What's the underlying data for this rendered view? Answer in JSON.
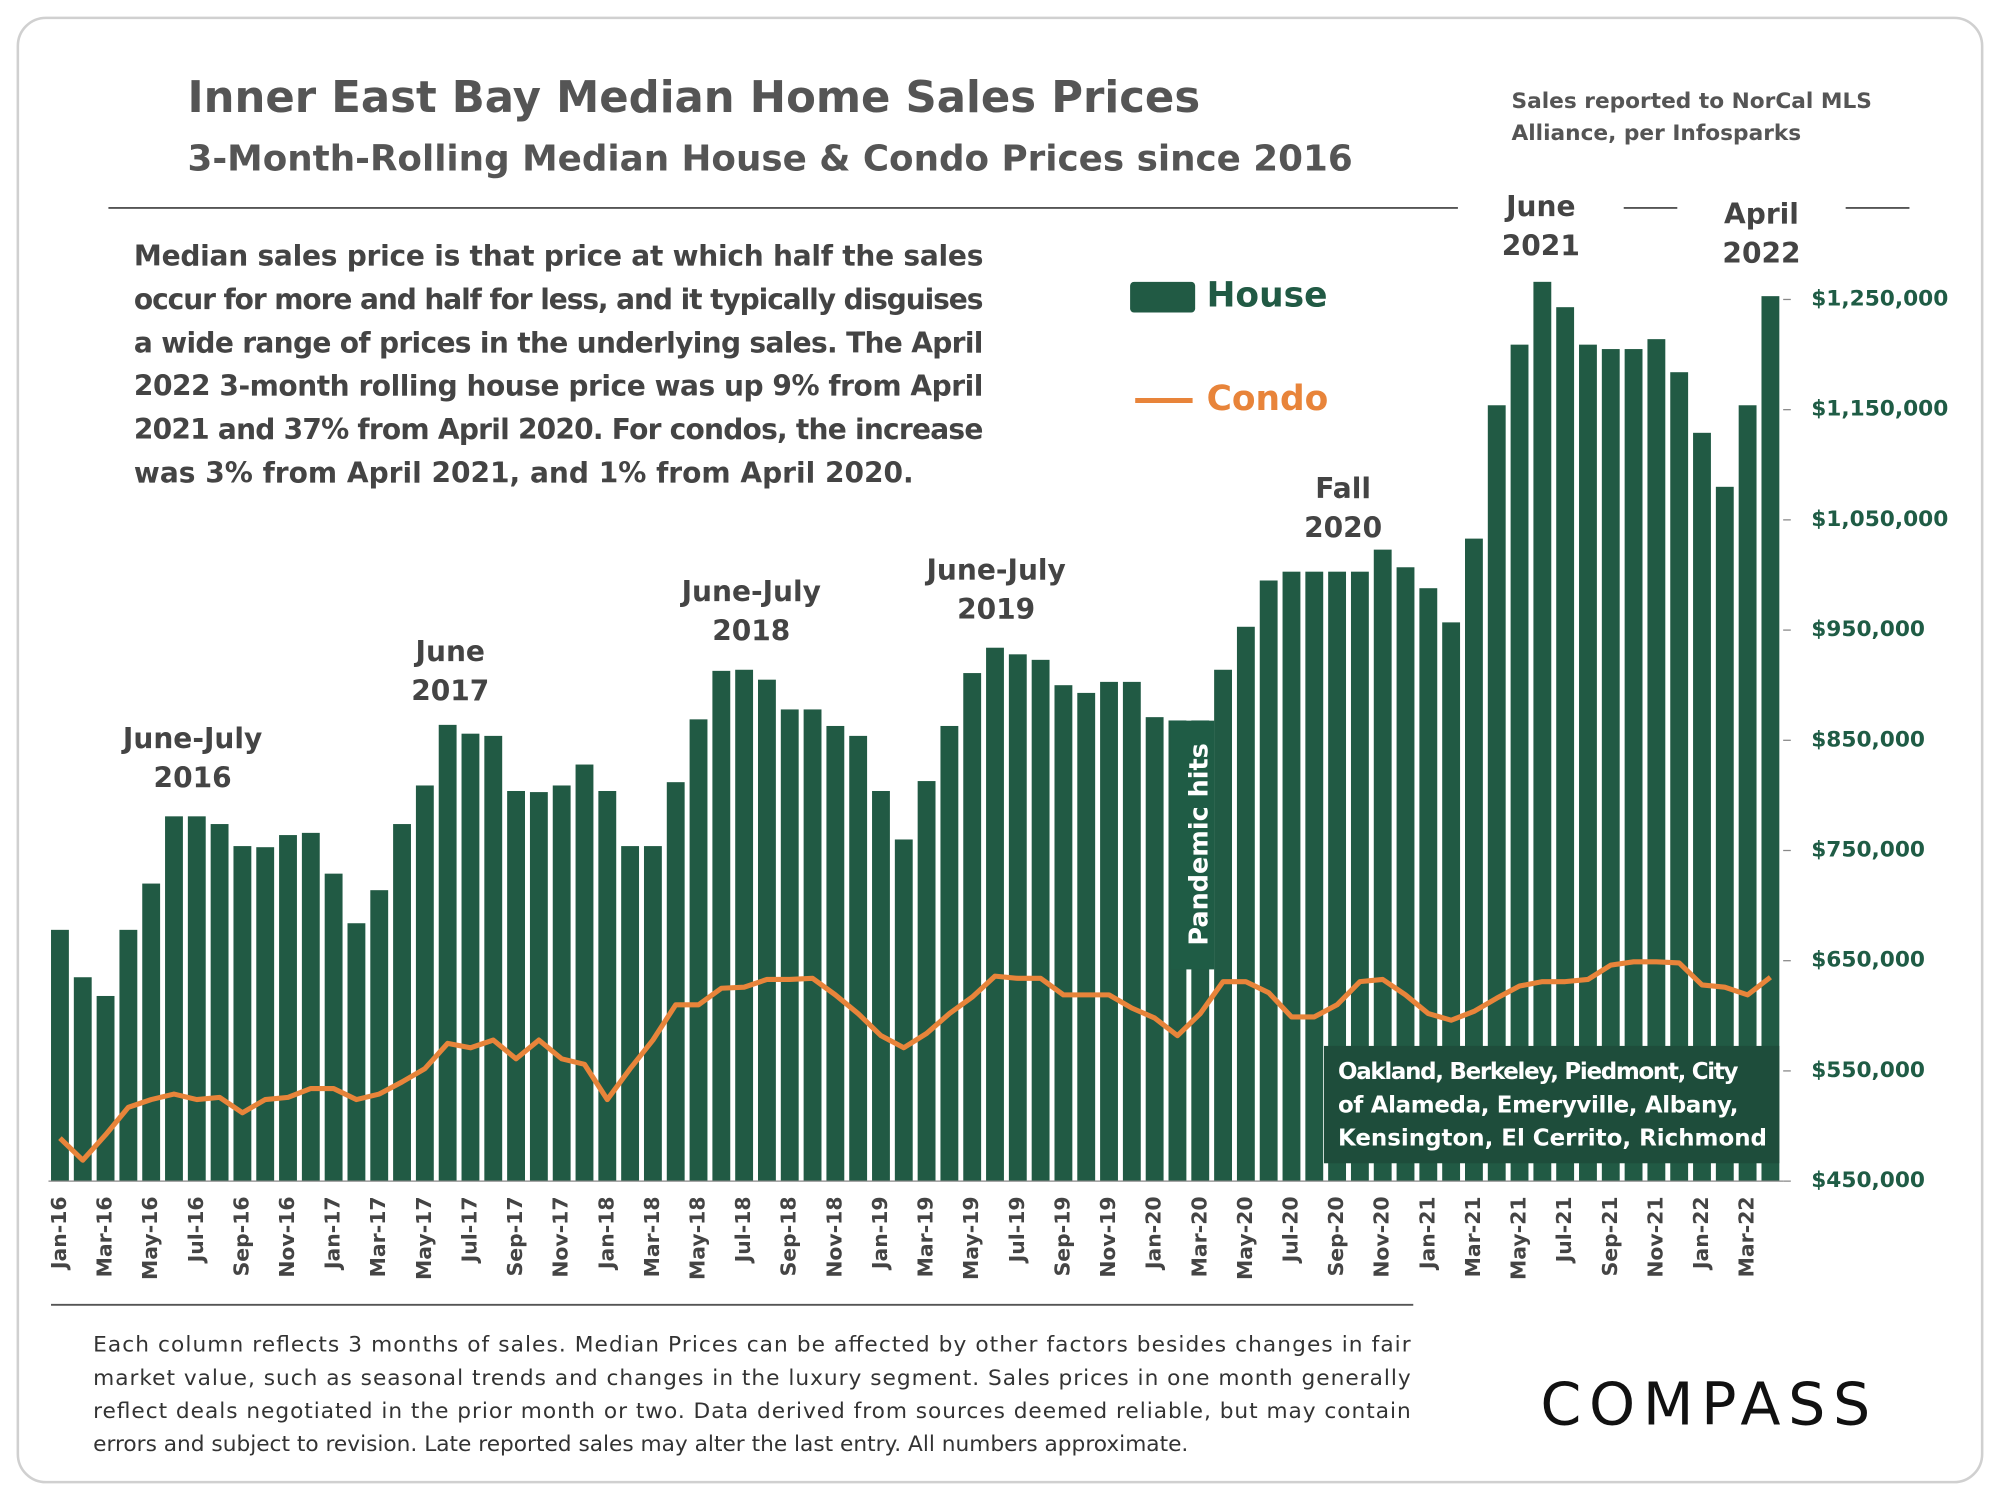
{
  "title": "Inner East Bay Median Home Sales Prices",
  "subtitle": "3-Month-Rolling Median House & Condo Prices since 2016",
  "source_note": [
    "Sales reported to NorCal MLS",
    "Alliance, per Infosparks"
  ],
  "description": [
    "Median sales price is that price at which half the sales",
    "occur for more and half for less, and it typically disguises",
    "a wide range of prices in the underlying sales. The April",
    "2022 3-month rolling house price was up 9% from April",
    "2021 and 37% from April 2020. For condos, the increase",
    "was 3% from April 2021, and 1% from April 2020."
  ],
  "chart_data": {
    "type": "bar",
    "categories": [
      "Jan-16",
      null,
      "Mar-16",
      null,
      "May-16",
      null,
      "Jul-16",
      null,
      "Sep-16",
      null,
      "Nov-16",
      null,
      "Jan-17",
      null,
      "Mar-17",
      null,
      "May-17",
      null,
      "Jul-17",
      null,
      "Sep-17",
      null,
      "Nov-17",
      null,
      "Jan-18",
      null,
      "Mar-18",
      null,
      "May-18",
      null,
      "Jul-18",
      null,
      "Sep-18",
      null,
      "Nov-18",
      null,
      "Jan-19",
      null,
      "Mar-19",
      null,
      "May-19",
      null,
      "Jul-19",
      null,
      "Sep-19",
      null,
      "Nov-19",
      null,
      "Jan-20",
      null,
      "Mar-20",
      null,
      "May-20",
      null,
      "Jul-20",
      null,
      "Sep-20",
      null,
      "Nov-20",
      null,
      "Jan-21",
      null,
      "Mar-21",
      null,
      "May-21",
      null,
      "Jul-21",
      null,
      "Sep-21",
      null,
      "Nov-21",
      null,
      "Jan-22",
      null,
      "Mar-22",
      null
    ],
    "series": [
      {
        "name": "House",
        "type": "bar",
        "color": "#215a44",
        "values": [
          678000,
          635000,
          618000,
          678000,
          720000,
          781000,
          781000,
          774000,
          754000,
          753000,
          764000,
          766000,
          729000,
          684000,
          714000,
          774000,
          809000,
          864000,
          856000,
          854000,
          804000,
          803000,
          809000,
          828000,
          804000,
          754000,
          754000,
          812000,
          869000,
          913000,
          914000,
          905000,
          878000,
          878000,
          863000,
          854000,
          804000,
          760000,
          813000,
          863000,
          911000,
          934000,
          928000,
          923000,
          900000,
          893000,
          903000,
          903000,
          871000,
          868000,
          868000,
          914000,
          953000,
          995000,
          1003000,
          1003000,
          1003000,
          1003000,
          1023000,
          1007000,
          988000,
          957000,
          1033000,
          1154000,
          1209000,
          1266000,
          1243000,
          1209000,
          1205000,
          1205000,
          1214000,
          1184000,
          1129000,
          1080000,
          1154000,
          1253000
        ]
      },
      {
        "name": "Condo",
        "type": "line",
        "color": "#e8843a",
        "values": [
          489000,
          469000,
          492000,
          517000,
          524000,
          529000,
          524000,
          526000,
          512000,
          524000,
          526000,
          534000,
          534000,
          524000,
          529000,
          540000,
          552000,
          575000,
          571000,
          578000,
          561000,
          578000,
          561000,
          556000,
          524000,
          552000,
          578000,
          610000,
          610000,
          625000,
          626000,
          633000,
          633000,
          634000,
          619000,
          602000,
          582000,
          571000,
          584000,
          602000,
          617000,
          636000,
          634000,
          634000,
          619000,
          619000,
          619000,
          607000,
          598000,
          582000,
          602000,
          631000,
          631000,
          621000,
          599000,
          599000,
          610000,
          631000,
          633000,
          619000,
          602000,
          596000,
          604000,
          616000,
          627000,
          631000,
          631000,
          633000,
          646000,
          649000,
          649000,
          648000,
          628000,
          626000,
          619000,
          635000
        ]
      }
    ],
    "ylim": [
      450000,
      1320000
    ],
    "yticks": [
      {
        "value": 450000,
        "label": "$450,000"
      },
      {
        "value": 550000,
        "label": "$550,000"
      },
      {
        "value": 650000,
        "label": "$650,000"
      },
      {
        "value": 750000,
        "label": "$750,000"
      },
      {
        "value": 850000,
        "label": "$850,000"
      },
      {
        "value": 950000,
        "label": "$950,000"
      },
      {
        "value": 1050000,
        "label": "$1,050,000"
      },
      {
        "value": 1150000,
        "label": "$1,150,000"
      },
      {
        "value": 1250000,
        "label": "$1,250,000"
      }
    ],
    "annotations": [
      {
        "lines": [
          "June-July",
          "2016"
        ]
      },
      {
        "lines": [
          "June",
          "2017"
        ]
      },
      {
        "lines": [
          "June-July",
          "2018"
        ]
      },
      {
        "lines": [
          "June-July",
          "2019"
        ]
      },
      {
        "lines": [
          "Fall",
          "2020"
        ]
      },
      {
        "lines": [
          "June",
          "2021"
        ]
      },
      {
        "lines": [
          "April",
          "2022"
        ]
      }
    ],
    "event_label": "Pandemic hits",
    "region_note": [
      "Oakland, Berkeley, Piedmont, City",
      "of Alameda, Emeryville, Albany,",
      "Kensington, El Cerrito, Richmond"
    ]
  },
  "footnote": [
    "Each column reflects 3 months of sales. Median Prices can be affected by other factors besides changes in fair",
    "market value, such as seasonal trends and changes in the luxury segment. Sales prices in one month generally",
    "reflect deals negotiated in the prior month or two. Data derived from sources deemed reliable, but may contain",
    "errors and subject to revision. Late reported sales may alter the last entry. All numbers approximate."
  ],
  "logo": "COMPASS"
}
